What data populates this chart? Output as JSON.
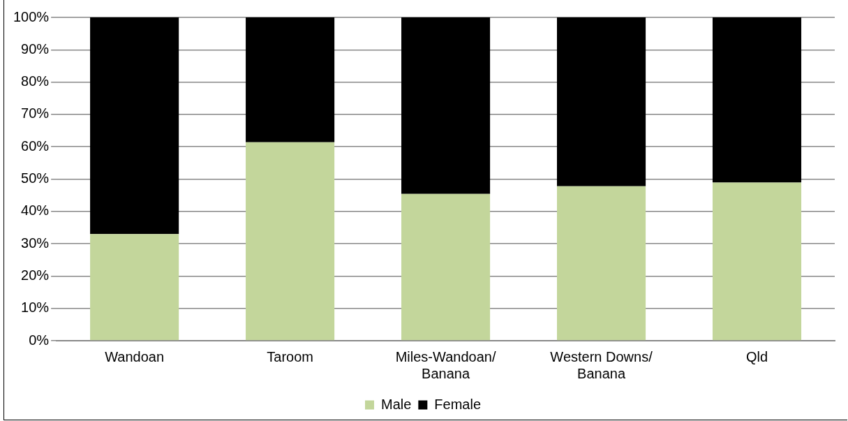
{
  "chart_data": {
    "type": "bar",
    "stacked": true,
    "categories": [
      "Wandoan",
      "Taroom",
      "Miles-Wandoan/\nBanana",
      "Western Downs/\nBanana",
      "Qld"
    ],
    "series": [
      {
        "name": "Male",
        "color": "#c3d69b",
        "values": [
          33,
          61.4,
          45.4,
          47.8,
          48.9
        ]
      },
      {
        "name": "Female",
        "color": "#000000",
        "values": [
          67,
          38.6,
          54.6,
          52.2,
          51.1
        ]
      }
    ],
    "ylim": [
      0,
      100
    ],
    "yticks": [
      {
        "value": 0,
        "label": "0%"
      },
      {
        "value": 10,
        "label": "10%"
      },
      {
        "value": 20,
        "label": "20%"
      },
      {
        "value": 30,
        "label": "30%"
      },
      {
        "value": 40,
        "label": "40%"
      },
      {
        "value": 50,
        "label": "50%"
      },
      {
        "value": 60,
        "label": "60%"
      },
      {
        "value": 70,
        "label": "70%"
      },
      {
        "value": 80,
        "label": "80%"
      },
      {
        "value": 90,
        "label": "90%"
      },
      {
        "value": 100,
        "label": "100%"
      }
    ],
    "grid": "y",
    "legend": "bottom"
  }
}
